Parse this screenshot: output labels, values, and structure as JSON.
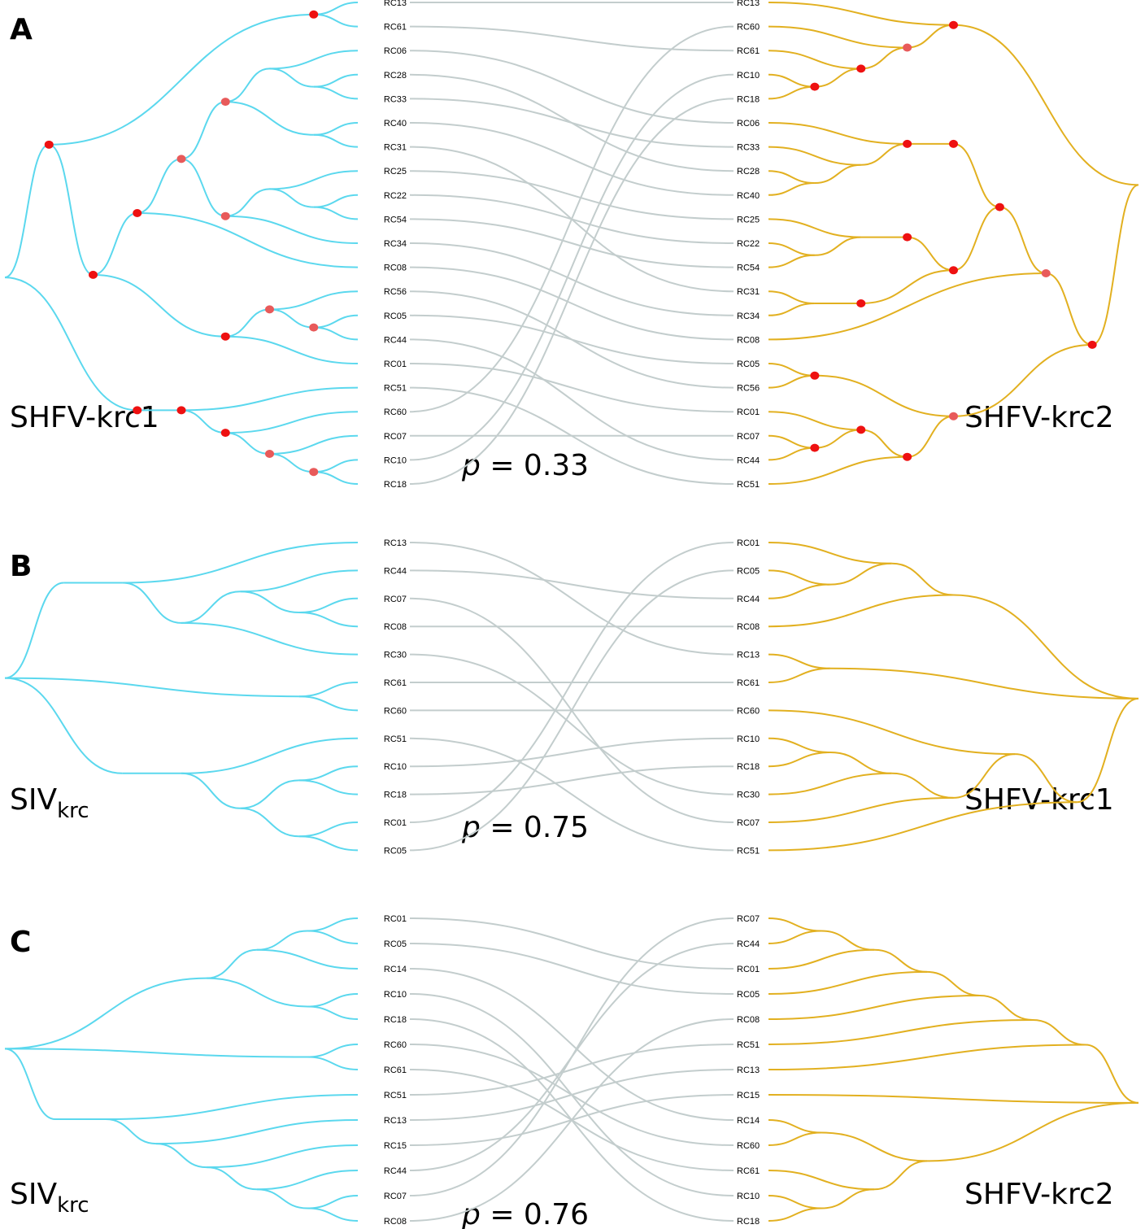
{
  "colors": {
    "left_tree": "#5bd8ee",
    "right_tree": "#e2b020",
    "connector": "#c3cdcd",
    "node": "#ee1111",
    "node_light": "#e85a5a"
  },
  "panels": [
    {
      "letter": "A",
      "left_label": {
        "main": "SHFV-krc1",
        "sub": ""
      },
      "right_label": {
        "main": "SHFV-krc2",
        "sub": ""
      },
      "p_symbol": "p",
      "p_eq": "= 0.33",
      "left_leaves": [
        "RC13",
        "RC61",
        "RC06",
        "RC28",
        "RC33",
        "RC40",
        "RC31",
        "RC25",
        "RC22",
        "RC54",
        "RC34",
        "RC08",
        "RC56",
        "RC05",
        "RC44",
        "RC01",
        "RC51",
        "RC60",
        "RC07",
        "RC10",
        "RC18"
      ],
      "right_leaves": [
        "RC13",
        "RC60",
        "RC61",
        "RC10",
        "RC18",
        "RC06",
        "RC33",
        "RC28",
        "RC40",
        "RC25",
        "RC22",
        "RC54",
        "RC31",
        "RC34",
        "RC08",
        "RC05",
        "RC56",
        "RC01",
        "RC07",
        "RC44",
        "RC51"
      ],
      "left_tree": [
        [
          [
            "RC13",
            "RC61"
          ],
          [
            [
              [
                [
                  [
                    "RC06",
                    [
                      "RC28",
                      "RC33"
                    ]
                  ],
                  [
                    "RC40",
                    "RC31"
                  ]
                ],
                [
                  [
                    "RC25",
                    [
                      "RC22",
                      "RC54"
                    ]
                  ],
                  "RC34"
                ]
              ],
              "RC08"
            ],
            [
              [
                "RC56",
                [
                  "RC05",
                  "RC44"
                ]
              ],
              "RC01"
            ]
          ]
        ],
        [
          [
            "RC51",
            [
              "RC60",
              [
                "RC07",
                [
                  "RC10",
                  "RC18"
                ]
              ]
            ]
          ]
        ]
      ],
      "right_tree": [
        [
          "RC13",
          [
            "RC60",
            [
              "RC61",
              [
                "RC10",
                "RC18"
              ]
            ]
          ]
        ],
        [
          [
            [
              [
                [
                  "RC06",
                  [
                    "RC33",
                    [
                      "RC28",
                      "RC40"
                    ]
                  ]
                ]
              ],
              [
                [
                  [
                    "RC25",
                    [
                      "RC22",
                      "RC54"
                    ]
                  ]
                ],
                [
                  [
                    "RC31",
                    "RC34"
                  ]
                ]
              ]
            ],
            "RC08"
          ],
          [
            [
              "RC05",
              "RC56"
            ],
            [
              [
                "RC01",
                [
                  "RC07",
                  "RC44"
                ]
              ],
              "RC51"
            ]
          ]
        ]
      ],
      "left_marked": [
        {
          "depth": 1,
          "shade": "dark"
        },
        {
          "depth": 2,
          "shade": "dark"
        },
        {
          "depth": 3,
          "shade": "dark"
        },
        {
          "depth": 4,
          "shade": "light"
        },
        {
          "depth": 5,
          "shade": "light"
        }
      ],
      "right_marked": [
        {
          "depth": 1,
          "shade": "dark"
        },
        {
          "depth": 2,
          "shade": "light"
        },
        {
          "depth": 3,
          "shade": "dark"
        },
        {
          "depth": 4,
          "shade": "dark"
        },
        {
          "depth": 5,
          "shade": "dark"
        }
      ]
    },
    {
      "letter": "B",
      "left_label": {
        "main": "SIV",
        "sub": "krc"
      },
      "right_label": {
        "main": "SHFV-krc1",
        "sub": ""
      },
      "p_symbol": "p",
      "p_eq": "= 0.75",
      "left_leaves": [
        "RC13",
        "RC44",
        "RC07",
        "RC08",
        "RC30",
        "RC61",
        "RC60",
        "RC51",
        "RC10",
        "RC18",
        "RC01",
        "RC05"
      ],
      "right_leaves": [
        "RC01",
        "RC05",
        "RC44",
        "RC08",
        "RC13",
        "RC61",
        "RC60",
        "RC10",
        "RC18",
        "RC30",
        "RC07",
        "RC51"
      ],
      "left_tree": [
        [
          [
            "RC13",
            [
              [
                "RC44",
                [
                  "RC07",
                  "RC08"
                ]
              ],
              "RC30"
            ]
          ]
        ],
        [
          "RC61",
          "RC60"
        ],
        [
          [
            "RC51",
            [
              [
                "RC10",
                "RC18"
              ],
              [
                "RC01",
                "RC05"
              ]
            ]
          ]
        ]
      ],
      "right_tree": [
        [
          [
            "RC01",
            [
              "RC05",
              "RC44"
            ]
          ],
          "RC08"
        ],
        [
          "RC13",
          "RC61"
        ],
        [
          [
            "RC60",
            [
              [
                [
                  "RC10",
                  "RC18"
                ],
                "RC30"
              ],
              "RC07"
            ]
          ],
          "RC51"
        ]
      ],
      "left_marked": [],
      "right_marked": []
    },
    {
      "letter": "C",
      "left_label": {
        "main": "SIV",
        "sub": "krc"
      },
      "right_label": {
        "main": "SHFV-krc2",
        "sub": ""
      },
      "p_symbol": "p",
      "p_eq": "= 0.76",
      "left_leaves": [
        "RC01",
        "RC05",
        "RC14",
        "RC10",
        "RC18",
        "RC60",
        "RC61",
        "RC51",
        "RC13",
        "RC15",
        "RC44",
        "RC07",
        "RC08"
      ],
      "right_leaves": [
        "RC07",
        "RC44",
        "RC01",
        "RC05",
        "RC08",
        "RC51",
        "RC13",
        "RC15",
        "RC14",
        "RC60",
        "RC61",
        "RC10",
        "RC18"
      ],
      "left_tree": [
        [
          [
            [
              "RC01",
              "RC05"
            ],
            "RC14"
          ],
          [
            "RC10",
            "RC18"
          ]
        ],
        [
          "RC60",
          "RC61"
        ],
        [
          [
            "RC51",
            [
              "RC13",
              [
                "RC15",
                [
                  "RC44",
                  [
                    "RC07",
                    "RC08"
                  ]
                ]
              ]
            ]
          ]
        ]
      ],
      "right_tree": [
        [
          [
            [
              [
                [
                  [
                    "RC07",
                    "RC44"
                  ],
                  "RC01"
                ],
                "RC05"
              ],
              "RC08"
            ],
            "RC51"
          ],
          "RC13"
        ],
        "RC15",
        [
          [
            "RC14",
            "RC60"
          ],
          [
            "RC61",
            [
              "RC10",
              "RC18"
            ]
          ]
        ]
      ],
      "left_marked": [],
      "right_marked": []
    }
  ]
}
